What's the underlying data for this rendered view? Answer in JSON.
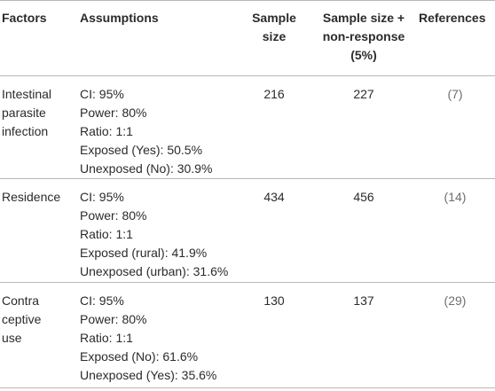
{
  "headers": {
    "factors": "Factors",
    "assumptions": "Assumptions",
    "sample_size_l1": "Sample",
    "sample_size_l2": "size",
    "sample_nr_l1": "Sample size +",
    "sample_nr_l2": "non-response",
    "sample_nr_l3": "(5%)",
    "references": "References"
  },
  "rows": [
    {
      "factor_lines": [
        "Intestinal",
        "parasite",
        "infection"
      ],
      "assumptions": [
        "CI: 95%",
        "Power: 80%",
        "Ratio: 1:1",
        "Exposed (Yes): 50.5%",
        "Unexposed (No): 30.9%"
      ],
      "sample_size": "216",
      "sample_nr": "227",
      "reference": "(7)"
    },
    {
      "factor_lines": [
        "Residence"
      ],
      "assumptions": [
        "CI: 95%",
        "Power: 80%",
        "Ratio: 1:1",
        "Exposed (rural): 41.9%",
        "Unexposed (urban): 31.6%"
      ],
      "sample_size": "434",
      "sample_nr": "456",
      "reference": "(14)"
    },
    {
      "factor_lines": [
        "Contra",
        "ceptive",
        "use"
      ],
      "assumptions": [
        "CI: 95%",
        "Power: 80%",
        "Ratio: 1:1",
        "Exposed (No): 61.6%",
        "Unexposed (Yes): 35.6%"
      ],
      "sample_size": "130",
      "sample_nr": "137",
      "reference": "(29)"
    }
  ]
}
